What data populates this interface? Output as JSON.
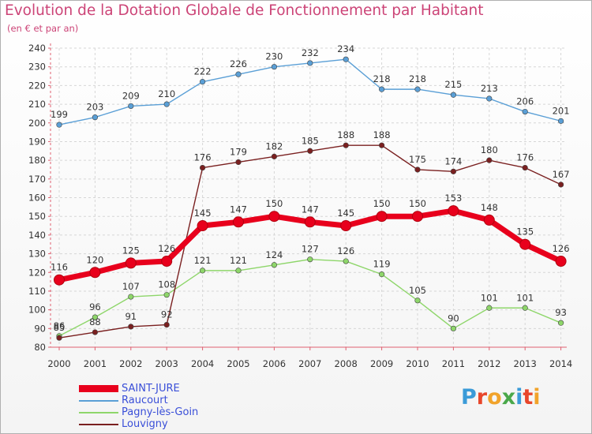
{
  "title": "Evolution de la Dotation Globale de Fonctionnement par Habitant",
  "subtitle": "(en € et par an)",
  "logo": {
    "text": "Proxiti",
    "colors": [
      "#3b9bd8",
      "#e8462b",
      "#f1a32b",
      "#4aa84a",
      "#3b9bd8",
      "#e8462b",
      "#f1a32b"
    ]
  },
  "chart_data": {
    "type": "line",
    "title": "Evolution de la Dotation Globale de Fonctionnement par Habitant",
    "subtitle": "(en € et par an)",
    "xlabel": "",
    "ylabel": "",
    "x": [
      "2000",
      "2001",
      "2002",
      "2003",
      "2004",
      "2005",
      "2006",
      "2007",
      "2008",
      "2009",
      "2010",
      "2011",
      "2012",
      "2013",
      "2014"
    ],
    "ylim": [
      80,
      240
    ],
    "yticks": [
      80,
      90,
      100,
      110,
      120,
      130,
      140,
      150,
      160,
      170,
      180,
      190,
      200,
      210,
      220,
      230,
      240
    ],
    "grid": true,
    "legend_position": "bottom-left",
    "series": [
      {
        "name": "SAINT-JURE",
        "color": "#e8001c",
        "emphasis": true,
        "values": [
          116,
          120,
          125,
          126,
          145,
          147,
          150,
          147,
          145,
          150,
          150,
          153,
          148,
          135,
          126
        ]
      },
      {
        "name": "Raucourt",
        "color": "#5a9fd6",
        "emphasis": false,
        "values": [
          199,
          203,
          209,
          210,
          222,
          226,
          230,
          232,
          234,
          218,
          218,
          215,
          213,
          206,
          201
        ]
      },
      {
        "name": "Pagny-lès-Goin",
        "color": "#8ed66a",
        "emphasis": false,
        "values": [
          86,
          96,
          107,
          108,
          121,
          121,
          124,
          127,
          126,
          119,
          105,
          90,
          101,
          101,
          93
        ]
      },
      {
        "name": "Louvigny",
        "color": "#7a2020",
        "emphasis": false,
        "values": [
          85,
          88,
          91,
          92,
          176,
          179,
          182,
          185,
          188,
          188,
          175,
          174,
          180,
          176,
          167
        ]
      }
    ],
    "annotations": [
      "SAINT-JURE 2000 label rendered as 116; overlapping 2000 labels 86 and 85"
    ]
  }
}
